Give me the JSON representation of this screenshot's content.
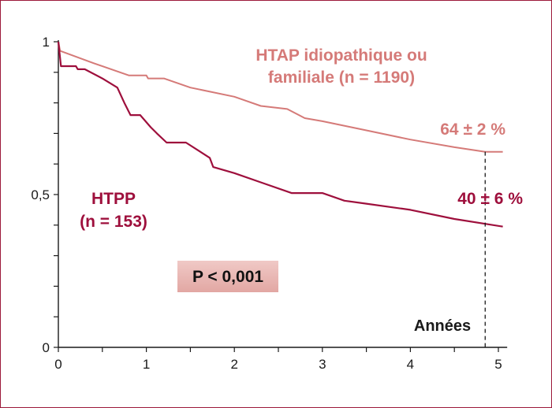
{
  "chart_data": {
    "type": "line",
    "xlabel": "Années",
    "ylabel": "",
    "xlim": [
      0,
      5.1
    ],
    "ylim": [
      0,
      1
    ],
    "x_ticks": [
      "0",
      "1",
      "2",
      "3",
      "4",
      "5"
    ],
    "y_ticks": [
      "0",
      "0,5",
      "1"
    ],
    "series": [
      {
        "name": "HTAP idiopathique ou familiale (n = 1190)",
        "color": "#d57a78",
        "points": [
          [
            0,
            1
          ],
          [
            0.02,
            0.97
          ],
          [
            0.4,
            0.93
          ],
          [
            0.8,
            0.89
          ],
          [
            1.0,
            0.89
          ],
          [
            1.02,
            0.88
          ],
          [
            1.2,
            0.88
          ],
          [
            1.5,
            0.85
          ],
          [
            2.0,
            0.82
          ],
          [
            2.3,
            0.79
          ],
          [
            2.6,
            0.78
          ],
          [
            2.8,
            0.75
          ],
          [
            3.0,
            0.74
          ],
          [
            3.5,
            0.71
          ],
          [
            4.0,
            0.68
          ],
          [
            4.5,
            0.655
          ],
          [
            4.85,
            0.64
          ],
          [
            5.05,
            0.64
          ]
        ]
      },
      {
        "name": "HTPP (n = 153)",
        "color": "#9e0f3c",
        "points": [
          [
            0,
            1
          ],
          [
            0.03,
            0.92
          ],
          [
            0.2,
            0.92
          ],
          [
            0.22,
            0.91
          ],
          [
            0.3,
            0.91
          ],
          [
            0.5,
            0.88
          ],
          [
            0.67,
            0.85
          ],
          [
            0.75,
            0.8
          ],
          [
            0.82,
            0.76
          ],
          [
            0.93,
            0.76
          ],
          [
            1.05,
            0.72
          ],
          [
            1.12,
            0.7
          ],
          [
            1.23,
            0.67
          ],
          [
            1.45,
            0.67
          ],
          [
            1.72,
            0.62
          ],
          [
            1.76,
            0.59
          ],
          [
            2.0,
            0.57
          ],
          [
            2.3,
            0.54
          ],
          [
            2.65,
            0.505
          ],
          [
            3.0,
            0.505
          ],
          [
            3.25,
            0.48
          ],
          [
            3.5,
            0.47
          ],
          [
            4.0,
            0.45
          ],
          [
            4.5,
            0.42
          ],
          [
            5.05,
            0.395
          ]
        ]
      }
    ],
    "annotations": {
      "idio_line1": "HTAP idiopathique ou",
      "idio_line2": "familiale (n = 1190)",
      "idio_value": "64 ± 2 %",
      "htpp_line1": "HTPP",
      "htpp_line2": "(n = 153)",
      "htpp_value": "40 ± 6 %",
      "pvalue": "P < 0,001",
      "marker_x": 4.85
    }
  }
}
